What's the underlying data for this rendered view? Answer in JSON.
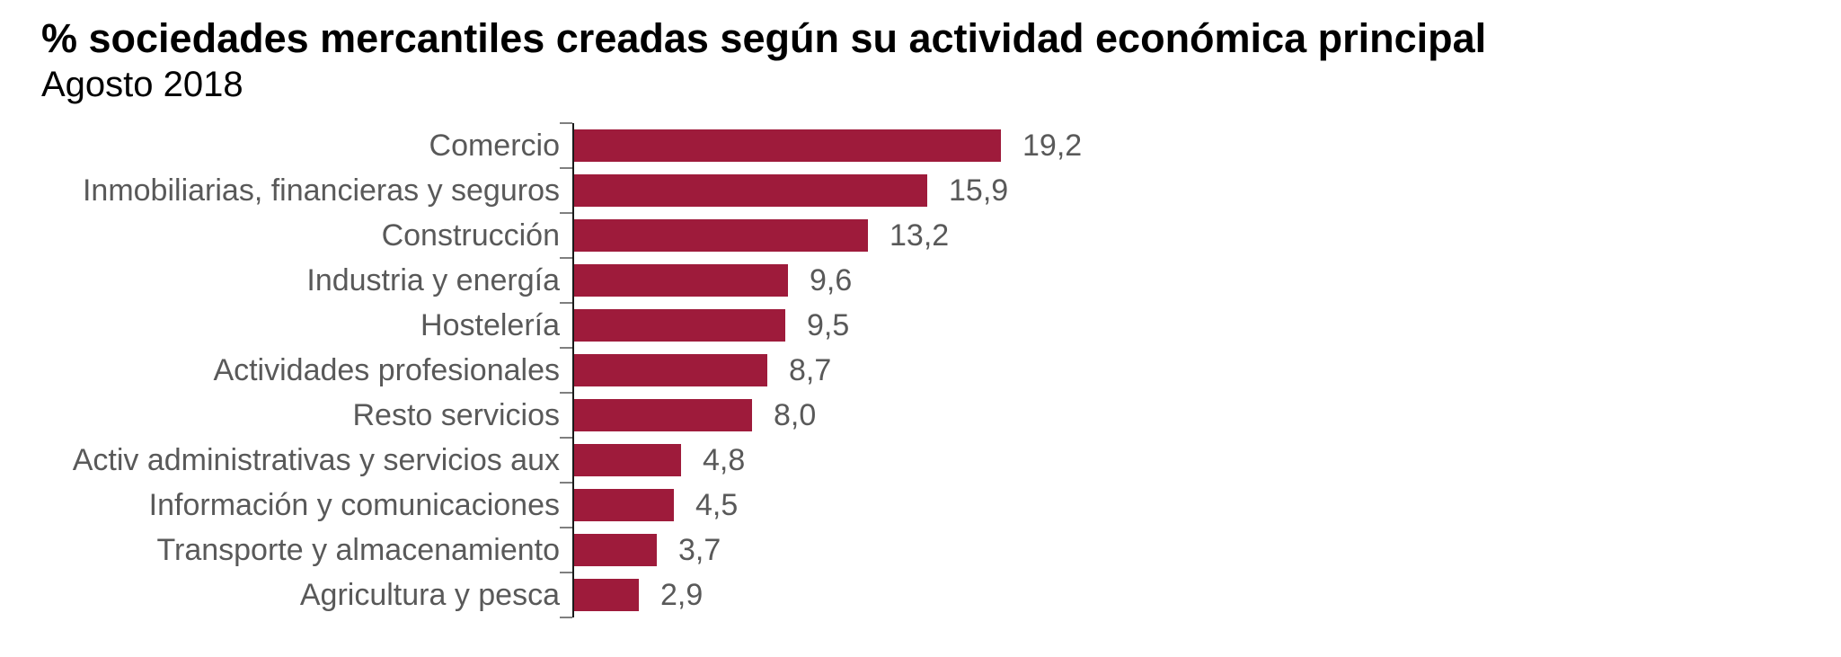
{
  "header": {
    "title": "% sociedades mercantiles creadas según su actividad económica principal",
    "subtitle": "Agosto 2018"
  },
  "chart_data": {
    "type": "bar",
    "orientation": "horizontal",
    "title": "% sociedades mercantiles creadas según su actividad económica principal",
    "subtitle": "Agosto 2018",
    "xlabel": "",
    "ylabel": "",
    "xlim": [
      0,
      20
    ],
    "grid": false,
    "legend": false,
    "categories": [
      "Comercio",
      "Inmobiliarias, financieras y seguros",
      "Construcción",
      "Industria y energía",
      "Hostelería",
      "Actividades profesionales",
      "Resto servicios",
      "Activ administrativas y servicios aux",
      "Información y comunicaciones",
      "Transporte y almacenamiento",
      "Agricultura y pesca"
    ],
    "values": [
      19.2,
      15.9,
      13.2,
      9.6,
      9.5,
      8.7,
      8.0,
      4.8,
      4.5,
      3.7,
      2.9
    ],
    "value_labels": [
      "19,2",
      "15,9",
      "13,2",
      "9,6",
      "9,5",
      "8,7",
      "8,0",
      "4,8",
      "4,5",
      "3,7",
      "2,9"
    ],
    "colors": {
      "bar": "#9E1B3B",
      "category_label": "#595959",
      "value_label": "#595959",
      "axis": "#1A1A1A",
      "tick": "#7F7F7F",
      "title": "#000000"
    }
  }
}
